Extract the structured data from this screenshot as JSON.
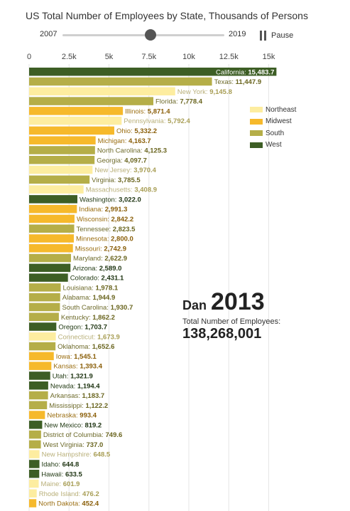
{
  "title": "US Total Number of Employees by State, Thousands of Persons",
  "controls": {
    "start_year": "2007",
    "end_year": "2019",
    "pause_label": "Pause",
    "progress": 0.5
  },
  "annotation": {
    "name": "Dan",
    "year": "2013",
    "label": "Total Number of Employees:",
    "total": "138,268,001"
  },
  "colors": {
    "Northeast": "#fdeda0",
    "Midwest": "#f6b92b",
    "South": "#b5ae48",
    "West": "#3d5e25"
  },
  "legend": [
    "Northeast",
    "Midwest",
    "South",
    "West"
  ],
  "chart_data": {
    "type": "bar",
    "orientation": "horizontal",
    "xlim": [
      0,
      16500
    ],
    "ticks": [
      0,
      2500,
      5000,
      7500,
      10000,
      12500,
      15000
    ],
    "tick_labels": [
      "0",
      "2.5k",
      "5k",
      "7.5k",
      "10k",
      "12.5k",
      "15k"
    ],
    "categories": [
      "California",
      "Texas",
      "New York",
      "Florida",
      "Illinois",
      "Pennsylvania",
      "Ohio",
      "Michigan",
      "North Carolina",
      "Georgia",
      "New Jersey",
      "Virginia",
      "Massachusetts",
      "Washington",
      "Indiana",
      "Wisconsin",
      "Tennessee",
      "Minnesota",
      "Missouri",
      "Maryland",
      "Arizona",
      "Colorado",
      "Louisiana",
      "Alabama",
      "South Carolina",
      "Kentucky",
      "Oregon",
      "Connecticut",
      "Oklahoma",
      "Iowa",
      "Kansas",
      "Utah",
      "Nevada",
      "Arkansas",
      "Mississippi",
      "Nebraska",
      "New Mexico",
      "District of Columbia",
      "West Virginia",
      "New Hampshire",
      "Idaho",
      "Hawaii",
      "Maine",
      "Rhode Island",
      "North Dakota"
    ],
    "values": [
      15483.7,
      11447.9,
      9145.8,
      7778.4,
      5871.4,
      5792.4,
      5332.2,
      4163.7,
      4125.3,
      4097.7,
      3970.4,
      3785.5,
      3408.9,
      3022.0,
      2991.3,
      2842.2,
      2823.5,
      2800.0,
      2742.9,
      2622.9,
      2589.0,
      2431.1,
      1978.1,
      1944.9,
      1930.7,
      1862.2,
      1703.7,
      1673.9,
      1652.6,
      1545.1,
      1393.4,
      1321.9,
      1194.4,
      1183.7,
      1122.2,
      993.4,
      819.2,
      749.6,
      737.0,
      648.5,
      644.8,
      633.5,
      601.9,
      476.2,
      452.4
    ],
    "value_labels": [
      "15,483.7",
      "11,447.9",
      "9,145.8",
      "7,778.4",
      "5,871.4",
      "5,792.4",
      "5,332.2",
      "4,163.7",
      "4,125.3",
      "4,097.7",
      "3,970.4",
      "3,785.5",
      "3,408.9",
      "3,022.0",
      "2,991.3",
      "2,842.2",
      "2,823.5",
      "2,800.0",
      "2,742.9",
      "2,622.9",
      "2,589.0",
      "2,431.1",
      "1,978.1",
      "1,944.9",
      "1,930.7",
      "1,862.2",
      "1,703.7",
      "1,673.9",
      "1,652.6",
      "1,545.1",
      "1,393.4",
      "1,321.9",
      "1,194.4",
      "1,183.7",
      "1,122.2",
      "993.4",
      "819.2",
      "749.6",
      "737.0",
      "648.5",
      "644.8",
      "633.5",
      "601.9",
      "476.2",
      "452.4"
    ],
    "regions": [
      "West",
      "South",
      "Northeast",
      "South",
      "Midwest",
      "Northeast",
      "Midwest",
      "Midwest",
      "South",
      "South",
      "Northeast",
      "South",
      "Northeast",
      "West",
      "Midwest",
      "Midwest",
      "South",
      "Midwest",
      "Midwest",
      "South",
      "West",
      "West",
      "South",
      "South",
      "South",
      "South",
      "West",
      "Northeast",
      "South",
      "Midwest",
      "Midwest",
      "West",
      "West",
      "South",
      "South",
      "Midwest",
      "West",
      "South",
      "South",
      "Northeast",
      "West",
      "West",
      "Northeast",
      "Northeast",
      "Midwest"
    ]
  }
}
